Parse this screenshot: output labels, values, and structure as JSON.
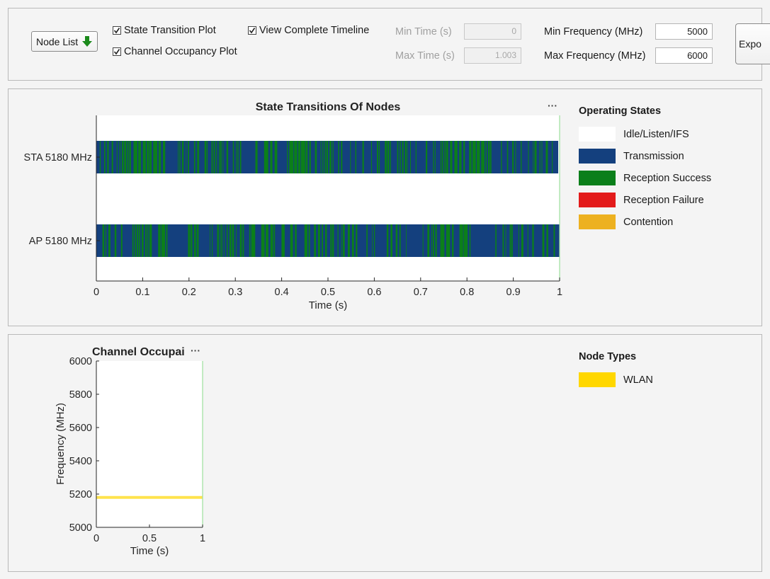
{
  "toolbar": {
    "node_list_label": "Node List",
    "checkboxes": [
      {
        "label": "State Transition Plot",
        "checked": true
      },
      {
        "label": "Channel Occupancy Plot",
        "checked": true
      },
      {
        "label": "View Complete Timeline",
        "checked": true
      }
    ],
    "min_time_label": "Min Time (s)",
    "min_time_value": "0",
    "max_time_label": "Max Time (s)",
    "max_time_value": "1.003",
    "min_freq_label": "Min Frequency (MHz)",
    "min_freq_value": "5000",
    "max_freq_label": "Max Frequency (MHz)",
    "max_freq_value": "6000",
    "export_label": "Expo"
  },
  "state_panel": {
    "menu_icon": "ellipsis-icon",
    "legend_title": "Operating States",
    "legend": [
      {
        "label": "Idle/Listen/IFS",
        "color": "#ffffff"
      },
      {
        "label": "Transmission",
        "color": "#14407e"
      },
      {
        "label": "Reception Success",
        "color": "#0b7f1a"
      },
      {
        "label": "Reception Failure",
        "color": "#e31b1b"
      },
      {
        "label": "Contention",
        "color": "#edb120"
      }
    ]
  },
  "occupancy_panel": {
    "menu_icon": "ellipsis-icon",
    "legend_title": "Node Types",
    "legend": [
      {
        "label": "WLAN",
        "color": "#ffd700"
      }
    ]
  },
  "chart_data": [
    {
      "type": "bar",
      "title": "State Transitions Of Nodes",
      "xlabel": "Time (s)",
      "ylabel": "",
      "xlim": [
        0,
        1
      ],
      "xticks": [
        "0",
        "0.1",
        "0.2",
        "0.3",
        "0.4",
        "0.5",
        "0.6",
        "0.7",
        "0.8",
        "0.9",
        "1"
      ],
      "categories": [
        "STA 5180 MHz",
        "AP 5180 MHz"
      ],
      "series": [
        {
          "name": "Transmission",
          "color": "#14407e"
        },
        {
          "name": "Reception Success",
          "color": "#0b7f1a"
        }
      ],
      "timeline_end": [
        0.997,
        1.0
      ],
      "grid": false,
      "legend_position": "right"
    },
    {
      "type": "area",
      "title": "Channel Occupai",
      "xlabel": "Time (s)",
      "ylabel": "Frequency (MHz)",
      "xlim": [
        0,
        1
      ],
      "ylim": [
        5000,
        6000
      ],
      "xticks": [
        "0",
        "0.5",
        "1"
      ],
      "yticks": [
        "5000",
        "5200",
        "5400",
        "5600",
        "5800",
        "6000"
      ],
      "series": [
        {
          "name": "WLAN",
          "color": "#ffd700",
          "x": [
            0,
            1
          ],
          "y": [
            5180,
            5180
          ]
        }
      ],
      "grid": false,
      "legend_position": "right"
    }
  ]
}
